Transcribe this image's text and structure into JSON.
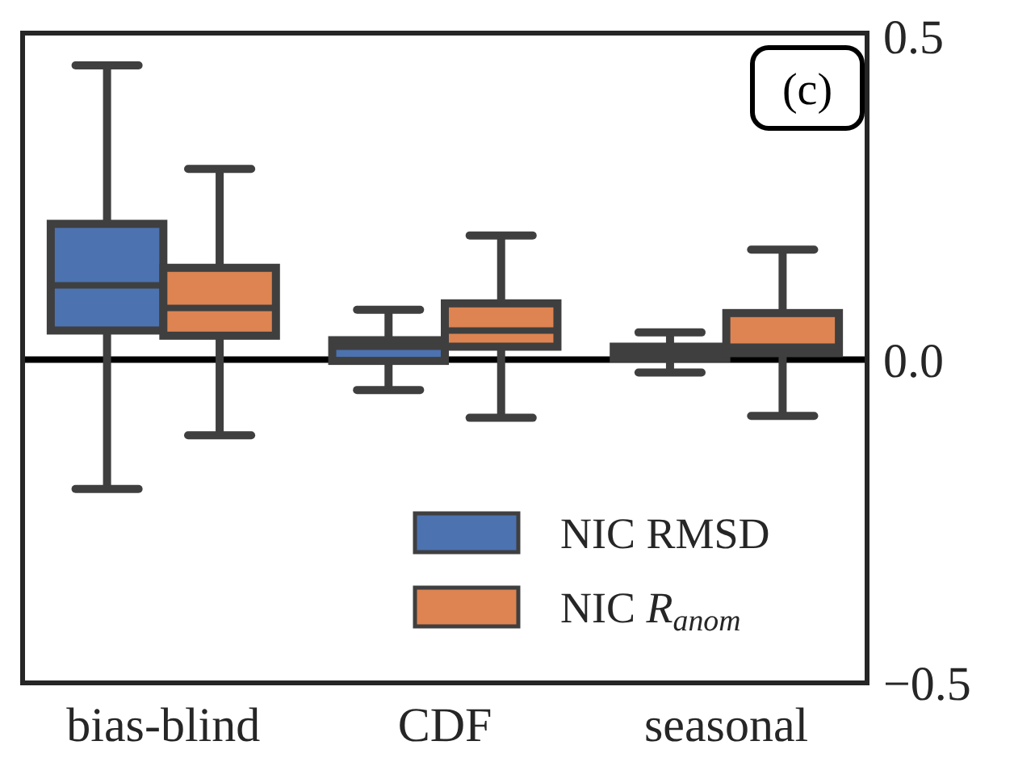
{
  "chart_data": {
    "type": "box",
    "categories": [
      "bias-blind",
      "CDF",
      "seasonal"
    ],
    "series": [
      {
        "name": "NIC RMSD",
        "color": "#4c72b0",
        "boxes": [
          {
            "low": -0.2,
            "q1": 0.045,
            "median": 0.115,
            "q3": 0.21,
            "high": 0.455
          },
          {
            "low": -0.047,
            "q1": -0.002,
            "median": 0.02,
            "q3": 0.03,
            "high": 0.077
          },
          {
            "low": -0.02,
            "q1": 0.002,
            "median": 0.012,
            "q3": 0.02,
            "high": 0.042
          }
        ]
      },
      {
        "name": "NIC R$_{anom}$",
        "color": "#dd8452",
        "boxes": [
          {
            "low": -0.117,
            "q1": 0.037,
            "median": 0.08,
            "q3": 0.142,
            "high": 0.295
          },
          {
            "low": -0.09,
            "q1": 0.02,
            "median": 0.045,
            "q3": 0.087,
            "high": 0.192
          },
          {
            "low": -0.087,
            "q1": 0.01,
            "median": 0.02,
            "q3": 0.072,
            "high": 0.17
          }
        ]
      }
    ],
    "ylim": [
      -0.5,
      0.505
    ],
    "yticks": [
      {
        "value": 0.5,
        "label": "0.5"
      },
      {
        "value": 0,
        "label": "0.0"
      },
      {
        "value": -0.5,
        "label": "−0.5"
      }
    ],
    "ref_lines": [
      {
        "axis": "y",
        "value": 0,
        "color": "#000000"
      }
    ],
    "annotations": [
      "(c)"
    ],
    "legend": "bottom right",
    "grid": false
  }
}
